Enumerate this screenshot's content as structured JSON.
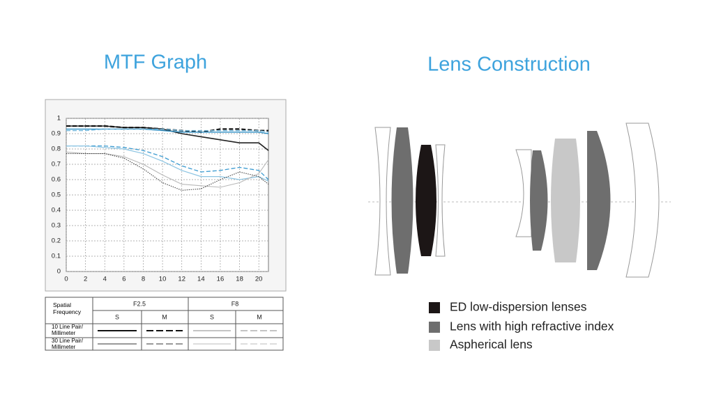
{
  "chart_data": {
    "type": "line",
    "title": "MTF Graph",
    "x": [
      0,
      2,
      4,
      6,
      8,
      10,
      12,
      14,
      16,
      18,
      20,
      21
    ],
    "xlim": [
      0,
      21
    ],
    "xticks": [
      0,
      2,
      4,
      6,
      8,
      10,
      12,
      14,
      16,
      18,
      20
    ],
    "ylim": [
      0,
      1
    ],
    "yticks": [
      0,
      0.1,
      0.2,
      0.3,
      0.4,
      0.5,
      0.6,
      0.7,
      0.8,
      0.9,
      1
    ],
    "grid": true,
    "series": [
      {
        "color": "#222222",
        "dash": "solid",
        "width": 1.6,
        "values": [
          0.95,
          0.95,
          0.95,
          0.94,
          0.94,
          0.93,
          0.9,
          0.88,
          0.86,
          0.84,
          0.84,
          0.79
        ]
      },
      {
        "color": "#111111",
        "dash": "dashed",
        "width": 2.2,
        "values": [
          0.95,
          0.95,
          0.95,
          0.94,
          0.94,
          0.93,
          0.92,
          0.91,
          0.93,
          0.93,
          0.92,
          0.92
        ]
      },
      {
        "color": "#2e8fc4",
        "dash": "solid",
        "width": 1.4,
        "values": [
          0.93,
          0.93,
          0.93,
          0.93,
          0.93,
          0.92,
          0.91,
          0.91,
          0.91,
          0.91,
          0.91,
          0.9
        ]
      },
      {
        "color": "#6fb6dc",
        "dash": "dashed",
        "width": 1.4,
        "values": [
          0.92,
          0.92,
          0.93,
          0.93,
          0.93,
          0.93,
          0.92,
          0.92,
          0.92,
          0.92,
          0.92,
          0.91
        ]
      },
      {
        "color": "#3a9ad0",
        "dash": "dashed",
        "width": 1.3,
        "values": [
          0.82,
          0.82,
          0.82,
          0.81,
          0.79,
          0.75,
          0.69,
          0.65,
          0.66,
          0.68,
          0.66,
          0.6
        ]
      },
      {
        "color": "#8cc4e2",
        "dash": "solid",
        "width": 1.2,
        "values": [
          0.82,
          0.82,
          0.81,
          0.8,
          0.77,
          0.72,
          0.66,
          0.62,
          0.62,
          0.6,
          0.62,
          0.59
        ]
      },
      {
        "color": "#b8b8b8",
        "dash": "solid",
        "width": 1.1,
        "values": [
          0.78,
          0.77,
          0.77,
          0.75,
          0.7,
          0.63,
          0.57,
          0.56,
          0.55,
          0.58,
          0.64,
          0.73
        ]
      },
      {
        "color": "#444444",
        "dash": "dotted",
        "width": 1.1,
        "values": [
          0.77,
          0.77,
          0.77,
          0.74,
          0.67,
          0.58,
          0.53,
          0.54,
          0.6,
          0.65,
          0.62,
          0.57
        ]
      }
    ]
  },
  "legend_table": {
    "corner": "Spatial Frequency",
    "apertures": [
      "F2.5",
      "F8"
    ],
    "subheaders": [
      "S",
      "M",
      "S",
      "M"
    ],
    "rows": [
      "10 Line Pair/ Millimeter",
      "30 Line Pair/ Millimeter"
    ]
  },
  "lens_construction": {
    "title": "Lens Construction",
    "legend": [
      "ED low-dispersion lenses",
      "Lens with high refractive index",
      "Aspherical lens"
    ]
  }
}
